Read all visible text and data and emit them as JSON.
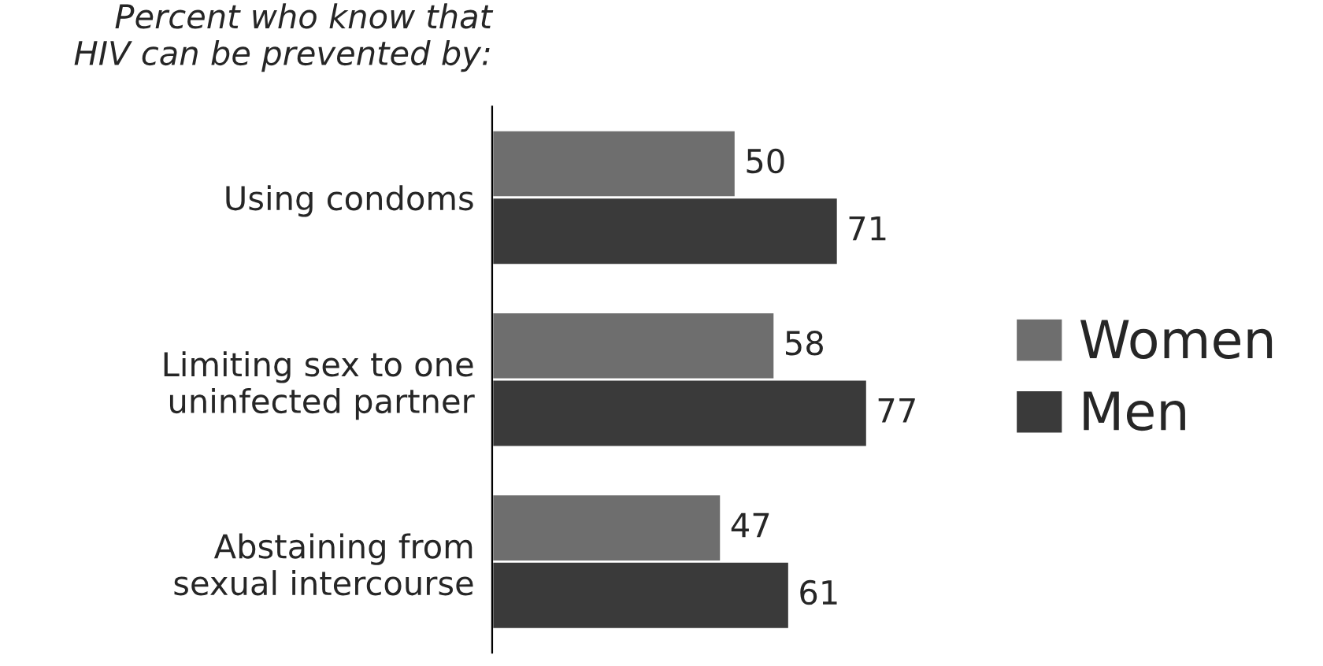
{
  "chart_data": {
    "type": "bar",
    "orientation": "horizontal",
    "title": "Percent who know that\nHIV can be prevented by:",
    "categories": [
      "Using condoms",
      "Limiting sex to one\nuninfected partner",
      "Abstaining from\nsexual intercourse"
    ],
    "series": [
      {
        "name": "Women",
        "color": "#6e6e6e",
        "values": [
          50,
          58,
          47
        ]
      },
      {
        "name": "Men",
        "color": "#3a3a3a",
        "values": [
          71,
          77,
          61
        ]
      }
    ],
    "data_labels": true,
    "legend": "right",
    "grid": false
  }
}
